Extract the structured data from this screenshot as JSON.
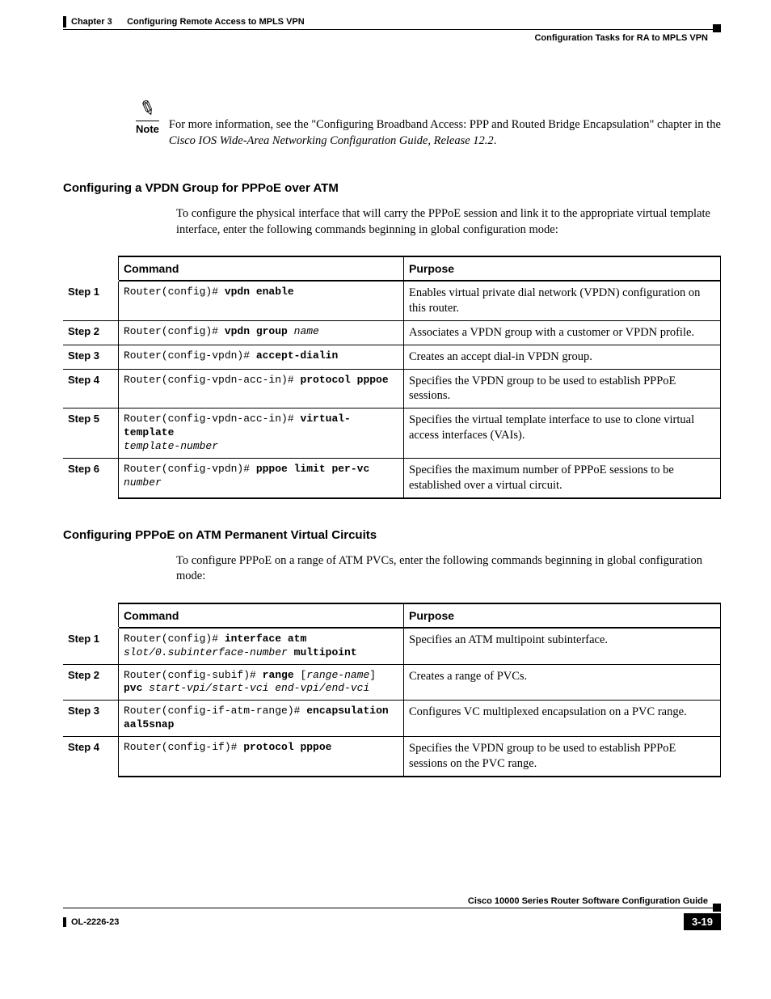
{
  "header": {
    "chapter": "Chapter 3      Configuring Remote Access to MPLS VPN",
    "section": "Configuration Tasks for RA to MPLS VPN"
  },
  "note": {
    "label": "Note",
    "text_pre": "For more information, see the \"Configuring Broadband Access: PPP and Routed Bridge Encapsulation\" chapter in the ",
    "text_ital": "Cisco IOS Wide-Area Networking Configuration Guide, Release 12.2",
    "text_post": "."
  },
  "section1": {
    "heading": "Configuring a VPDN Group for PPPoE over ATM",
    "para": "To configure the physical interface that will carry the PPPoE session and link it to the appropriate virtual template interface, enter the following commands beginning in global configuration mode:"
  },
  "table_headers": {
    "command": "Command",
    "purpose": "Purpose"
  },
  "table1": [
    {
      "step": "Step 1",
      "cmd_parts": [
        {
          "t": "Router(config)# ",
          "c": ""
        },
        {
          "t": "vpdn enable",
          "c": "mono-b"
        }
      ],
      "purpose": "Enables virtual private dial network (VPDN) configuration on this router."
    },
    {
      "step": "Step 2",
      "cmd_parts": [
        {
          "t": "Router(config)# ",
          "c": ""
        },
        {
          "t": "vpdn group",
          "c": "mono-b"
        },
        {
          "t": " name",
          "c": "mono-i"
        }
      ],
      "purpose": "Associates a VPDN group with a customer or VPDN profile."
    },
    {
      "step": "Step 3",
      "cmd_parts": [
        {
          "t": "Router(config-vpdn)# ",
          "c": ""
        },
        {
          "t": "accept-dialin",
          "c": "mono-b"
        }
      ],
      "purpose": "Creates an accept dial-in VPDN group."
    },
    {
      "step": "Step 4",
      "cmd_parts": [
        {
          "t": "Router(config-vpdn-acc-in)# ",
          "c": ""
        },
        {
          "t": "protocol pppoe",
          "c": "mono-b"
        }
      ],
      "purpose": "Specifies the VPDN group to be used to establish PPPoE sessions."
    },
    {
      "step": "Step 5",
      "cmd_parts": [
        {
          "t": "Router(config-vpdn-acc-in)# ",
          "c": ""
        },
        {
          "t": "virtual-template",
          "c": "mono-b"
        },
        {
          "t": "\n",
          "c": ""
        },
        {
          "t": "template-number",
          "c": "mono-i"
        }
      ],
      "purpose": "Specifies the virtual template interface to use to clone virtual access interfaces (VAIs)."
    },
    {
      "step": "Step 6",
      "cmd_parts": [
        {
          "t": "Router(config-vpdn)# ",
          "c": ""
        },
        {
          "t": "pppoe limit per-vc",
          "c": "mono-b"
        },
        {
          "t": "\n",
          "c": ""
        },
        {
          "t": "number",
          "c": "mono-i"
        }
      ],
      "purpose": "Specifies the maximum number of PPPoE sessions to be established over a virtual circuit."
    }
  ],
  "section2": {
    "heading": "Configuring PPPoE on ATM Permanent Virtual Circuits",
    "para": "To configure PPPoE on a range of ATM PVCs, enter the following commands beginning in global configuration mode:"
  },
  "table2": [
    {
      "step": "Step 1",
      "cmd_parts": [
        {
          "t": "Router(config)# ",
          "c": ""
        },
        {
          "t": "interface atm",
          "c": "mono-b"
        },
        {
          "t": "\n",
          "c": ""
        },
        {
          "t": "slot/0.subinterface-number ",
          "c": "mono-i"
        },
        {
          "t": "multipoint",
          "c": "mono-b"
        }
      ],
      "purpose": "Specifies an ATM multipoint subinterface."
    },
    {
      "step": "Step 2",
      "cmd_parts": [
        {
          "t": "Router(config-subif)# ",
          "c": ""
        },
        {
          "t": "range",
          "c": "mono-b"
        },
        {
          "t": " [",
          "c": ""
        },
        {
          "t": "range-name",
          "c": "mono-i"
        },
        {
          "t": "]\n",
          "c": ""
        },
        {
          "t": "pvc",
          "c": "mono-b"
        },
        {
          "t": " start-vpi/start-vci end-vpi/end-vci",
          "c": "mono-i"
        }
      ],
      "purpose": "Creates a range of PVCs."
    },
    {
      "step": "Step 3",
      "cmd_parts": [
        {
          "t": "Router(config-if-atm-range)# ",
          "c": ""
        },
        {
          "t": "encapsulation aal5snap",
          "c": "mono-b"
        }
      ],
      "purpose": "Configures VC multiplexed encapsulation on a PVC range."
    },
    {
      "step": "Step 4",
      "cmd_parts": [
        {
          "t": "Router(config-if)# ",
          "c": ""
        },
        {
          "t": "protocol pppoe",
          "c": "mono-b"
        }
      ],
      "purpose": "Specifies the VPDN group to be used to establish PPPoE sessions on the PVC range."
    }
  ],
  "footer": {
    "title": "Cisco 10000 Series Router Software Configuration Guide",
    "doc": "OL-2226-23",
    "page": "3-19"
  }
}
